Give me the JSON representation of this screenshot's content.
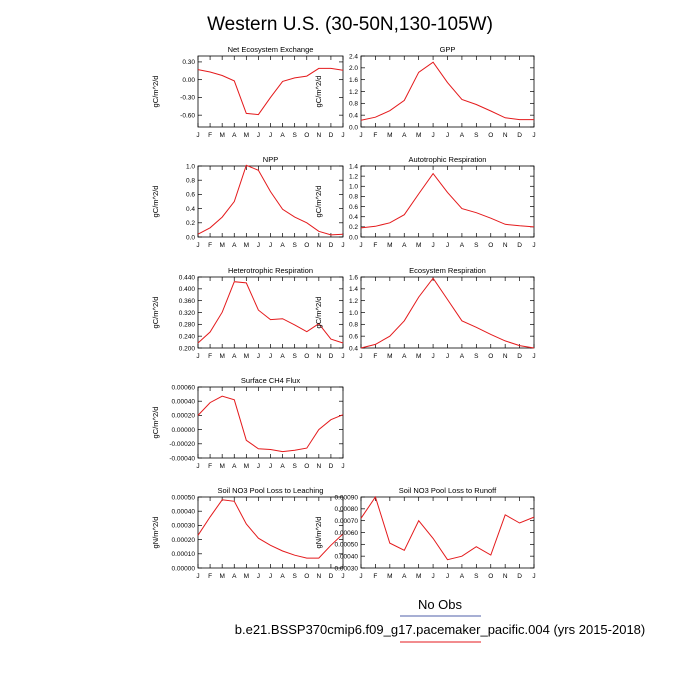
{
  "page": {
    "title": "Western U.S. (30-50N,130-105W)",
    "legend_label": "No Obs",
    "case_label": "b.e21.BSSP370cmip6.f09_g17.pacemaker_pacific.004 (yrs 2015-2018)",
    "line_color": "#e41a1c"
  },
  "chart_data": [
    {
      "type": "line",
      "title": "Net Ecosystem Exchange",
      "ylabel": "gC/m^2/d",
      "x": [
        "J",
        "F",
        "M",
        "A",
        "M",
        "J",
        "J",
        "A",
        "S",
        "O",
        "N",
        "D",
        "J"
      ],
      "ylim": [
        -0.8,
        0.4
      ],
      "yticks": [
        -0.6,
        -0.3,
        0.0,
        0.3
      ],
      "ytick_labels": [
        "-0.60",
        "-0.30",
        "0.00",
        "0.30"
      ],
      "series": [
        {
          "values": [
            0.17,
            0.13,
            0.07,
            -0.02,
            -0.57,
            -0.59,
            -0.3,
            -0.03,
            0.03,
            0.06,
            0.19,
            0.19,
            0.16
          ]
        }
      ]
    },
    {
      "type": "line",
      "title": "GPP",
      "ylabel": "gC/m^2/d",
      "x": [
        "J",
        "F",
        "M",
        "A",
        "M",
        "J",
        "J",
        "A",
        "S",
        "O",
        "N",
        "D",
        "J"
      ],
      "ylim": [
        0.0,
        2.4
      ],
      "yticks": [
        0.0,
        0.4,
        0.8,
        1.2,
        1.6,
        2.0,
        2.4
      ],
      "ytick_labels": [
        "0.0",
        "0.4",
        "0.8",
        "1.2",
        "1.6",
        "2.0",
        "2.4"
      ],
      "series": [
        {
          "values": [
            0.23,
            0.33,
            0.55,
            0.9,
            1.85,
            2.19,
            1.5,
            0.93,
            0.76,
            0.54,
            0.31,
            0.25,
            0.25
          ]
        }
      ]
    },
    {
      "type": "line",
      "title": "NPP",
      "ylabel": "gC/m^2/d",
      "x": [
        "J",
        "F",
        "M",
        "A",
        "M",
        "J",
        "J",
        "A",
        "S",
        "O",
        "N",
        "D",
        "J"
      ],
      "ylim": [
        0.0,
        1.0
      ],
      "yticks": [
        0.0,
        0.2,
        0.4,
        0.6,
        0.8,
        1.0
      ],
      "ytick_labels": [
        "0.0",
        "0.2",
        "0.4",
        "0.6",
        "0.8",
        "1.0"
      ],
      "series": [
        {
          "values": [
            0.04,
            0.13,
            0.28,
            0.5,
            1.01,
            0.94,
            0.64,
            0.39,
            0.28,
            0.2,
            0.08,
            0.03,
            0.04
          ]
        }
      ]
    },
    {
      "type": "line",
      "title": "Autotrophic Respiration",
      "ylabel": "gC/m^2/d",
      "x": [
        "J",
        "F",
        "M",
        "A",
        "M",
        "J",
        "J",
        "A",
        "S",
        "O",
        "N",
        "D",
        "J"
      ],
      "ylim": [
        0.0,
        1.4
      ],
      "yticks": [
        0.0,
        0.2,
        0.4,
        0.6,
        0.8,
        1.0,
        1.2,
        1.4
      ],
      "ytick_labels": [
        "0.0",
        "0.2",
        "0.4",
        "0.6",
        "0.8",
        "1.0",
        "1.2",
        "1.4"
      ],
      "series": [
        {
          "values": [
            0.18,
            0.21,
            0.28,
            0.44,
            0.85,
            1.25,
            0.88,
            0.56,
            0.48,
            0.37,
            0.25,
            0.22,
            0.2
          ]
        }
      ]
    },
    {
      "type": "line",
      "title": "Heterotrophic Respiration",
      "ylabel": "gC/m^2/d",
      "x": [
        "J",
        "F",
        "M",
        "A",
        "M",
        "J",
        "J",
        "A",
        "S",
        "O",
        "N",
        "D",
        "J"
      ],
      "ylim": [
        0.2,
        0.44
      ],
      "yticks": [
        0.2,
        0.24,
        0.28,
        0.32,
        0.36,
        0.4,
        0.44
      ],
      "ytick_labels": [
        "0.200",
        "0.240",
        "0.280",
        "0.320",
        "0.360",
        "0.400",
        "0.440"
      ],
      "series": [
        {
          "values": [
            0.217,
            0.254,
            0.321,
            0.424,
            0.42,
            0.328,
            0.296,
            0.299,
            0.278,
            0.255,
            0.282,
            0.23,
            0.217
          ]
        }
      ]
    },
    {
      "type": "line",
      "title": "Ecosystem Respiration",
      "ylabel": "gC/m^2/d",
      "x": [
        "J",
        "F",
        "M",
        "A",
        "M",
        "J",
        "J",
        "A",
        "S",
        "O",
        "N",
        "D",
        "J"
      ],
      "ylim": [
        0.4,
        1.6
      ],
      "yticks": [
        0.4,
        0.6,
        0.8,
        1.0,
        1.2,
        1.4,
        1.6
      ],
      "ytick_labels": [
        "0.4",
        "0.6",
        "0.8",
        "1.0",
        "1.2",
        "1.4",
        "1.6"
      ],
      "series": [
        {
          "values": [
            0.4,
            0.46,
            0.6,
            0.86,
            1.26,
            1.58,
            1.22,
            0.86,
            0.75,
            0.63,
            0.52,
            0.44,
            0.4
          ]
        }
      ]
    },
    {
      "type": "line",
      "title": "Surface CH4 Flux",
      "ylabel": "gC/m^2/d",
      "x": [
        "J",
        "F",
        "M",
        "A",
        "M",
        "J",
        "J",
        "A",
        "S",
        "O",
        "N",
        "D",
        "J"
      ],
      "ylim": [
        -0.0004,
        0.0006
      ],
      "yticks": [
        -0.0004,
        -0.0002,
        0.0,
        0.0002,
        0.0004,
        0.0006
      ],
      "ytick_labels": [
        "-0.00040",
        "-0.00020",
        "0.00000",
        "0.00020",
        "0.00040",
        "0.00060"
      ],
      "series": [
        {
          "values": [
            0.0002,
            0.00038,
            0.00047,
            0.00042,
            -0.00015,
            -0.00027,
            -0.00028,
            -0.00031,
            -0.00029,
            -0.00026,
            0.0,
            0.00014,
            0.00021
          ]
        }
      ]
    },
    {
      "type": "line",
      "title": "Soil NO3 Pool Loss to Leaching",
      "ylabel": "gN/m^2/d",
      "x": [
        "J",
        "F",
        "M",
        "A",
        "M",
        "J",
        "J",
        "A",
        "S",
        "O",
        "N",
        "D",
        "J"
      ],
      "ylim": [
        0.0,
        0.0005
      ],
      "yticks": [
        0.0,
        0.0001,
        0.0002,
        0.0003,
        0.0004,
        0.0005
      ],
      "ytick_labels": [
        "0.00000",
        "0.00010",
        "0.00020",
        "0.00030",
        "0.00040",
        "0.00050"
      ],
      "series": [
        {
          "values": [
            0.00023,
            0.00036,
            0.00048,
            0.00047,
            0.00031,
            0.00021,
            0.00016,
            0.00012,
            9e-05,
            7e-05,
            7e-05,
            0.00016,
            0.00024
          ]
        }
      ]
    },
    {
      "type": "line",
      "title": "Soil NO3 Pool Loss to Runoff",
      "ylabel": "gN/m^2/d",
      "x": [
        "J",
        "F",
        "M",
        "A",
        "M",
        "J",
        "J",
        "A",
        "S",
        "O",
        "N",
        "D",
        "J"
      ],
      "ylim": [
        0.0003,
        0.0009
      ],
      "yticks": [
        0.0003,
        0.0004,
        0.0005,
        0.0006,
        0.0007,
        0.0008,
        0.0009
      ],
      "ytick_labels": [
        "0.00030",
        "0.00040",
        "0.00050",
        "0.00060",
        "0.00070",
        "0.00080",
        "0.00090"
      ],
      "series": [
        {
          "values": [
            0.00072,
            0.0009,
            0.00051,
            0.00045,
            0.0007,
            0.00055,
            0.00037,
            0.0004,
            0.00048,
            0.00041,
            0.00075,
            0.00068,
            0.00073
          ]
        }
      ]
    }
  ]
}
